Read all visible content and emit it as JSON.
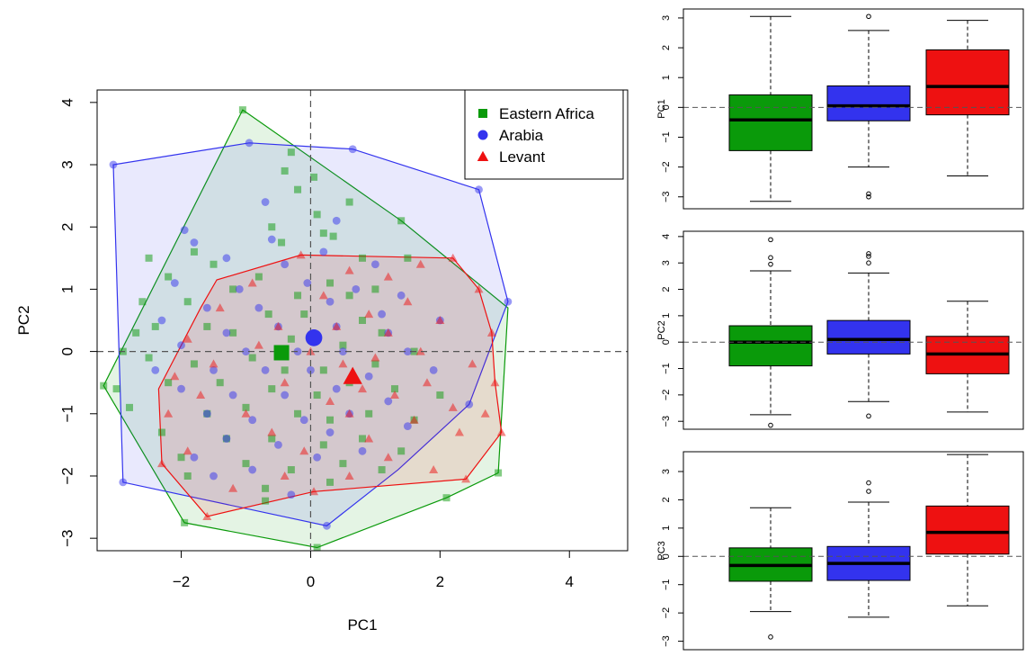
{
  "colors": {
    "eastern_africa": "#0a9a0a",
    "arabia": "#3333ee",
    "levant": "#ee1111"
  },
  "chart_data": [
    {
      "type": "scatter",
      "title": "",
      "xlabel": "PC1",
      "ylabel": "PC2",
      "xlim": [
        -3.3,
        4.9
      ],
      "ylim": [
        -3.2,
        4.2
      ],
      "xticks": [
        "-2",
        "0",
        "2",
        "4"
      ],
      "yticks": [
        "-3",
        "-2",
        "-1",
        "0",
        "1",
        "2",
        "3",
        "4"
      ],
      "reference_lines": {
        "x": 0,
        "y": 0
      },
      "legend_position": "top-right",
      "legend": [
        "Eastern Africa",
        "Arabia",
        "Levant"
      ],
      "series": [
        {
          "name": "Eastern Africa",
          "marker": "square",
          "color": "#0a9a0a",
          "centroid": [
            -0.45,
            -0.02
          ],
          "hull": [
            [
              -1.05,
              3.88
            ],
            [
              1.4,
              2.1
            ],
            [
              3.05,
              0.7
            ],
            [
              2.9,
              -1.95
            ],
            [
              2.1,
              -2.35
            ],
            [
              0.1,
              -3.15
            ],
            [
              -1.95,
              -2.75
            ],
            [
              -3.2,
              -0.55
            ]
          ],
          "points": [
            [
              -1.05,
              3.88
            ],
            [
              -0.3,
              3.2
            ],
            [
              -0.4,
              2.9
            ],
            [
              0.05,
              2.8
            ],
            [
              -0.2,
              2.6
            ],
            [
              0.6,
              2.4
            ],
            [
              0.1,
              2.2
            ],
            [
              -0.6,
              2.0
            ],
            [
              0.2,
              1.9
            ],
            [
              -0.45,
              1.75
            ],
            [
              0.35,
              1.85
            ],
            [
              -1.8,
              1.6
            ],
            [
              -2.5,
              1.5
            ],
            [
              1.4,
              2.1
            ],
            [
              0.8,
              1.5
            ],
            [
              -1.5,
              1.4
            ],
            [
              -0.8,
              1.2
            ],
            [
              -2.2,
              1.2
            ],
            [
              -1.2,
              1.0
            ],
            [
              0.3,
              1.1
            ],
            [
              -0.2,
              0.9
            ],
            [
              0.6,
              0.9
            ],
            [
              1.0,
              1.0
            ],
            [
              -2.6,
              0.8
            ],
            [
              -1.9,
              0.8
            ],
            [
              -0.65,
              0.6
            ],
            [
              -0.1,
              0.6
            ],
            [
              0.8,
              0.5
            ],
            [
              -2.7,
              0.3
            ],
            [
              -2.4,
              0.4
            ],
            [
              -1.6,
              0.4
            ],
            [
              -1.2,
              0.3
            ],
            [
              -0.3,
              0.2
            ],
            [
              0.5,
              0.1
            ],
            [
              1.1,
              0.3
            ],
            [
              -2.9,
              0.0
            ],
            [
              -2.5,
              -0.1
            ],
            [
              -1.8,
              -0.2
            ],
            [
              -0.9,
              -0.1
            ],
            [
              -0.4,
              -0.3
            ],
            [
              0.2,
              -0.3
            ],
            [
              1.0,
              -0.2
            ],
            [
              1.6,
              0.0
            ],
            [
              -3.0,
              -0.6
            ],
            [
              -2.2,
              -0.5
            ],
            [
              -1.4,
              -0.5
            ],
            [
              -0.6,
              -0.6
            ],
            [
              0.1,
              -0.7
            ],
            [
              0.6,
              -0.5
            ],
            [
              1.3,
              -0.6
            ],
            [
              2.0,
              -0.7
            ],
            [
              -3.2,
              -0.55
            ],
            [
              -2.8,
              -0.9
            ],
            [
              -1.6,
              -1.0
            ],
            [
              -1.0,
              -0.9
            ],
            [
              -0.2,
              -1.0
            ],
            [
              0.3,
              -1.1
            ],
            [
              0.9,
              -1.0
            ],
            [
              1.6,
              -1.1
            ],
            [
              -2.3,
              -1.3
            ],
            [
              -1.3,
              -1.4
            ],
            [
              -0.6,
              -1.4
            ],
            [
              0.2,
              -1.5
            ],
            [
              0.8,
              -1.4
            ],
            [
              1.4,
              -1.6
            ],
            [
              -2.0,
              -1.7
            ],
            [
              -1.0,
              -1.8
            ],
            [
              -0.3,
              -1.9
            ],
            [
              0.5,
              -1.8
            ],
            [
              1.1,
              -1.9
            ],
            [
              -1.9,
              -2.0
            ],
            [
              -0.7,
              -2.2
            ],
            [
              0.3,
              -2.1
            ],
            [
              2.9,
              -1.95
            ],
            [
              -0.7,
              -2.4
            ],
            [
              2.1,
              -2.35
            ],
            [
              -1.95,
              -2.75
            ],
            [
              0.1,
              -3.15
            ],
            [
              1.5,
              1.5
            ]
          ]
        },
        {
          "name": "Arabia",
          "marker": "circle",
          "color": "#3333ee",
          "centroid": [
            0.05,
            0.22
          ],
          "hull": [
            [
              -0.95,
              3.35
            ],
            [
              0.65,
              3.25
            ],
            [
              2.6,
              2.6
            ],
            [
              3.05,
              0.8
            ],
            [
              2.45,
              -0.85
            ],
            [
              1.35,
              -1.9
            ],
            [
              0.25,
              -2.8
            ],
            [
              -2.9,
              -2.1
            ],
            [
              -3.05,
              3.0
            ]
          ],
          "points": [
            [
              -3.05,
              3.0
            ],
            [
              -0.95,
              3.35
            ],
            [
              0.65,
              3.25
            ],
            [
              2.6,
              2.6
            ],
            [
              -1.95,
              1.95
            ],
            [
              -1.8,
              1.75
            ],
            [
              0.4,
              2.1
            ],
            [
              -0.6,
              1.8
            ],
            [
              0.2,
              1.6
            ],
            [
              -1.3,
              1.5
            ],
            [
              1.0,
              1.4
            ],
            [
              -0.4,
              1.4
            ],
            [
              -2.1,
              1.1
            ],
            [
              -1.1,
              1.0
            ],
            [
              -0.05,
              1.1
            ],
            [
              0.7,
              1.0
            ],
            [
              1.4,
              0.9
            ],
            [
              -1.6,
              0.7
            ],
            [
              -0.8,
              0.7
            ],
            [
              0.3,
              0.8
            ],
            [
              1.1,
              0.6
            ],
            [
              2.0,
              0.5
            ],
            [
              -2.3,
              0.5
            ],
            [
              -1.3,
              0.3
            ],
            [
              -0.5,
              0.4
            ],
            [
              0.4,
              0.4
            ],
            [
              1.2,
              0.3
            ],
            [
              -2.0,
              0.1
            ],
            [
              -1.0,
              0.0
            ],
            [
              -0.2,
              0.0
            ],
            [
              0.5,
              0.0
            ],
            [
              1.5,
              0.0
            ],
            [
              -2.4,
              -0.3
            ],
            [
              -1.5,
              -0.3
            ],
            [
              -0.7,
              -0.3
            ],
            [
              0.0,
              -0.3
            ],
            [
              0.9,
              -0.4
            ],
            [
              1.9,
              -0.3
            ],
            [
              -2.0,
              -0.6
            ],
            [
              -1.2,
              -0.7
            ],
            [
              -0.4,
              -0.7
            ],
            [
              0.4,
              -0.6
            ],
            [
              1.2,
              -0.8
            ],
            [
              -1.6,
              -1.0
            ],
            [
              -0.9,
              -1.1
            ],
            [
              -0.1,
              -1.1
            ],
            [
              0.6,
              -1.0
            ],
            [
              1.5,
              -1.2
            ],
            [
              -1.3,
              -1.4
            ],
            [
              -0.5,
              -1.5
            ],
            [
              0.3,
              -1.3
            ],
            [
              -1.8,
              -1.7
            ],
            [
              -0.9,
              -1.9
            ],
            [
              0.1,
              -1.7
            ],
            [
              0.8,
              -1.6
            ],
            [
              -1.5,
              -2.0
            ],
            [
              -0.3,
              -2.3
            ],
            [
              0.25,
              -2.8
            ],
            [
              -2.9,
              -2.1
            ],
            [
              3.05,
              0.8
            ],
            [
              2.45,
              -0.85
            ],
            [
              -0.7,
              2.4
            ]
          ]
        },
        {
          "name": "Levant",
          "marker": "triangle",
          "color": "#ee1111",
          "centroid": [
            0.65,
            -0.4
          ],
          "hull": [
            [
              -0.15,
              1.55
            ],
            [
              2.2,
              1.5
            ],
            [
              2.6,
              1.0
            ],
            [
              2.8,
              0.3
            ],
            [
              2.85,
              -0.5
            ],
            [
              2.95,
              -1.3
            ],
            [
              2.4,
              -2.05
            ],
            [
              0.05,
              -2.25
            ],
            [
              -1.6,
              -2.65
            ],
            [
              -2.3,
              -1.8
            ],
            [
              -2.35,
              -0.6
            ],
            [
              -1.7,
              0.7
            ],
            [
              -1.45,
              1.15
            ]
          ],
          "points": [
            [
              -0.15,
              1.55
            ],
            [
              1.7,
              1.4
            ],
            [
              2.2,
              1.5
            ],
            [
              0.6,
              1.3
            ],
            [
              1.2,
              1.2
            ],
            [
              -0.9,
              1.1
            ],
            [
              2.6,
              1.0
            ],
            [
              0.2,
              0.9
            ],
            [
              1.5,
              0.8
            ],
            [
              -1.4,
              0.7
            ],
            [
              0.9,
              0.6
            ],
            [
              2.0,
              0.5
            ],
            [
              -0.5,
              0.4
            ],
            [
              0.4,
              0.4
            ],
            [
              1.2,
              0.3
            ],
            [
              2.8,
              0.3
            ],
            [
              -1.9,
              0.2
            ],
            [
              -0.8,
              0.1
            ],
            [
              0.0,
              0.0
            ],
            [
              1.7,
              0.0
            ],
            [
              -1.5,
              -0.2
            ],
            [
              0.5,
              -0.2
            ],
            [
              1.0,
              -0.1
            ],
            [
              2.5,
              -0.2
            ],
            [
              -2.1,
              -0.4
            ],
            [
              -0.4,
              -0.5
            ],
            [
              0.8,
              -0.6
            ],
            [
              1.8,
              -0.5
            ],
            [
              2.85,
              -0.5
            ],
            [
              -1.7,
              -0.7
            ],
            [
              0.3,
              -0.8
            ],
            [
              1.3,
              -0.7
            ],
            [
              2.2,
              -0.9
            ],
            [
              -2.2,
              -1.0
            ],
            [
              -1.0,
              -1.0
            ],
            [
              0.6,
              -1.0
            ],
            [
              1.6,
              -1.1
            ],
            [
              2.7,
              -1.0
            ],
            [
              -0.6,
              -1.3
            ],
            [
              0.9,
              -1.4
            ],
            [
              2.3,
              -1.3
            ],
            [
              2.95,
              -1.3
            ],
            [
              -1.9,
              -1.6
            ],
            [
              -0.1,
              -1.6
            ],
            [
              1.2,
              -1.7
            ],
            [
              -2.3,
              -1.8
            ],
            [
              -0.4,
              -2.0
            ],
            [
              0.6,
              -2.0
            ],
            [
              2.4,
              -2.05
            ],
            [
              -1.6,
              -2.65
            ],
            [
              0.05,
              -2.25
            ],
            [
              1.9,
              -1.9
            ],
            [
              -1.2,
              -2.2
            ]
          ]
        }
      ]
    },
    {
      "type": "boxplot",
      "ylabel": "PC1",
      "ylim": [
        -3.4,
        3.3
      ],
      "yticks": [
        "-3",
        "-2",
        "-1",
        "0",
        "1",
        "2",
        "3"
      ],
      "reference_line": 0,
      "boxes": [
        {
          "name": "Eastern Africa",
          "color": "#0a9a0a",
          "min": -3.15,
          "q1": -1.45,
          "median": -0.42,
          "q3": 0.42,
          "max": 3.05,
          "outliers": []
        },
        {
          "name": "Arabia",
          "color": "#3333ee",
          "min": -2.0,
          "q1": -0.45,
          "median": 0.05,
          "q3": 0.72,
          "max": 2.58,
          "outliers": [
            3.05,
            -2.9,
            -3.0
          ]
        },
        {
          "name": "Levant",
          "color": "#ee1111",
          "min": -2.3,
          "q1": -0.25,
          "median": 0.7,
          "q3": 1.93,
          "max": 2.92,
          "outliers": []
        }
      ]
    },
    {
      "type": "boxplot",
      "ylabel": "PC2",
      "ylim": [
        -3.3,
        4.2
      ],
      "yticks": [
        "-3",
        "-2",
        "-1",
        "0",
        "1",
        "2",
        "3",
        "4"
      ],
      "reference_line": 0,
      "boxes": [
        {
          "name": "Eastern Africa",
          "color": "#0a9a0a",
          "min": -2.75,
          "q1": -0.9,
          "median": 0.0,
          "q3": 0.62,
          "max": 2.7,
          "outliers": [
            3.88,
            3.2,
            2.95,
            -3.15
          ]
        },
        {
          "name": "Arabia",
          "color": "#3333ee",
          "min": -2.25,
          "q1": -0.45,
          "median": 0.1,
          "q3": 0.82,
          "max": 2.62,
          "outliers": [
            3.35,
            3.25,
            3.0,
            -2.8
          ]
        },
        {
          "name": "Levant",
          "color": "#ee1111",
          "min": -2.65,
          "q1": -1.2,
          "median": -0.45,
          "q3": 0.22,
          "max": 1.55,
          "outliers": []
        }
      ]
    },
    {
      "type": "boxplot",
      "ylabel": "PC3",
      "ylim": [
        -3.3,
        3.7
      ],
      "yticks": [
        "-3",
        "-2",
        "-1",
        "0",
        "1",
        "2",
        "3"
      ],
      "reference_line": 0,
      "boxes": [
        {
          "name": "Eastern Africa",
          "color": "#0a9a0a",
          "min": -1.95,
          "q1": -0.88,
          "median": -0.32,
          "q3": 0.3,
          "max": 1.72,
          "outliers": [
            -2.85
          ]
        },
        {
          "name": "Arabia",
          "color": "#3333ee",
          "min": -2.15,
          "q1": -0.85,
          "median": -0.25,
          "q3": 0.35,
          "max": 1.92,
          "outliers": [
            2.6,
            2.3
          ]
        },
        {
          "name": "Levant",
          "color": "#ee1111",
          "min": -1.75,
          "q1": 0.08,
          "median": 0.85,
          "q3": 1.78,
          "max": 3.6,
          "outliers": []
        }
      ]
    }
  ]
}
